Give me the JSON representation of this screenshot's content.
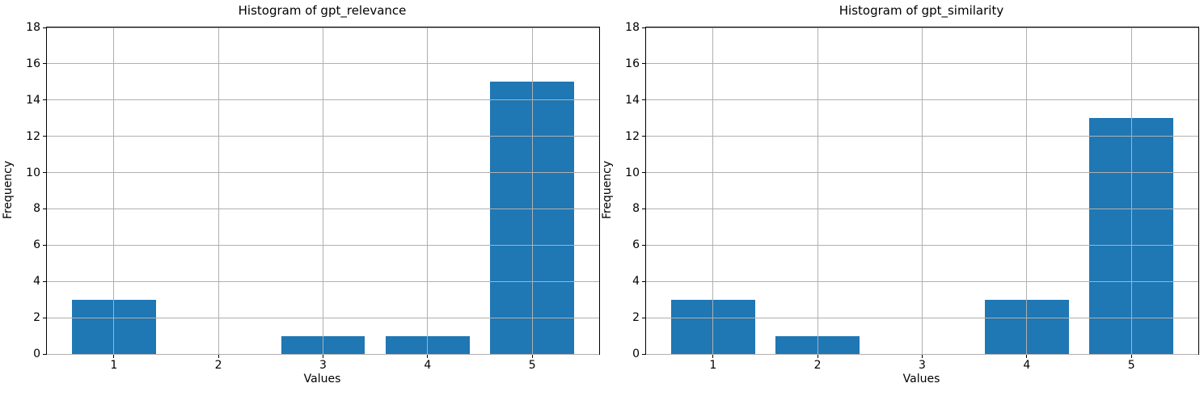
{
  "figure": {
    "background": "#ffffff",
    "spine_color": "#000000",
    "text_color": "#000000"
  },
  "chart_data": [
    {
      "type": "bar",
      "title": "Histogram of gpt_relevance",
      "xlabel": "Values",
      "ylabel": "Frequency",
      "categories": [
        1,
        2,
        3,
        4,
        5
      ],
      "values": [
        3,
        0,
        1,
        1,
        15
      ],
      "xlim": [
        0.36,
        5.64
      ],
      "ylim": [
        0,
        18
      ],
      "yticks": [
        0,
        2,
        4,
        6,
        8,
        10,
        12,
        14,
        16,
        18
      ],
      "bar_width": 0.8,
      "bar_color": "#1f77b4",
      "grid": true,
      "grid_color": "#b0b0b0",
      "legend": "none"
    },
    {
      "type": "bar",
      "title": "Histogram of gpt_similarity",
      "xlabel": "Values",
      "ylabel": "Frequency",
      "categories": [
        1,
        2,
        3,
        4,
        5
      ],
      "values": [
        3,
        1,
        0,
        3,
        13
      ],
      "xlim": [
        0.36,
        5.64
      ],
      "ylim": [
        0,
        18
      ],
      "yticks": [
        0,
        2,
        4,
        6,
        8,
        10,
        12,
        14,
        16,
        18
      ],
      "bar_width": 0.8,
      "bar_color": "#1f77b4",
      "grid": true,
      "grid_color": "#b0b0b0",
      "legend": "none"
    }
  ]
}
